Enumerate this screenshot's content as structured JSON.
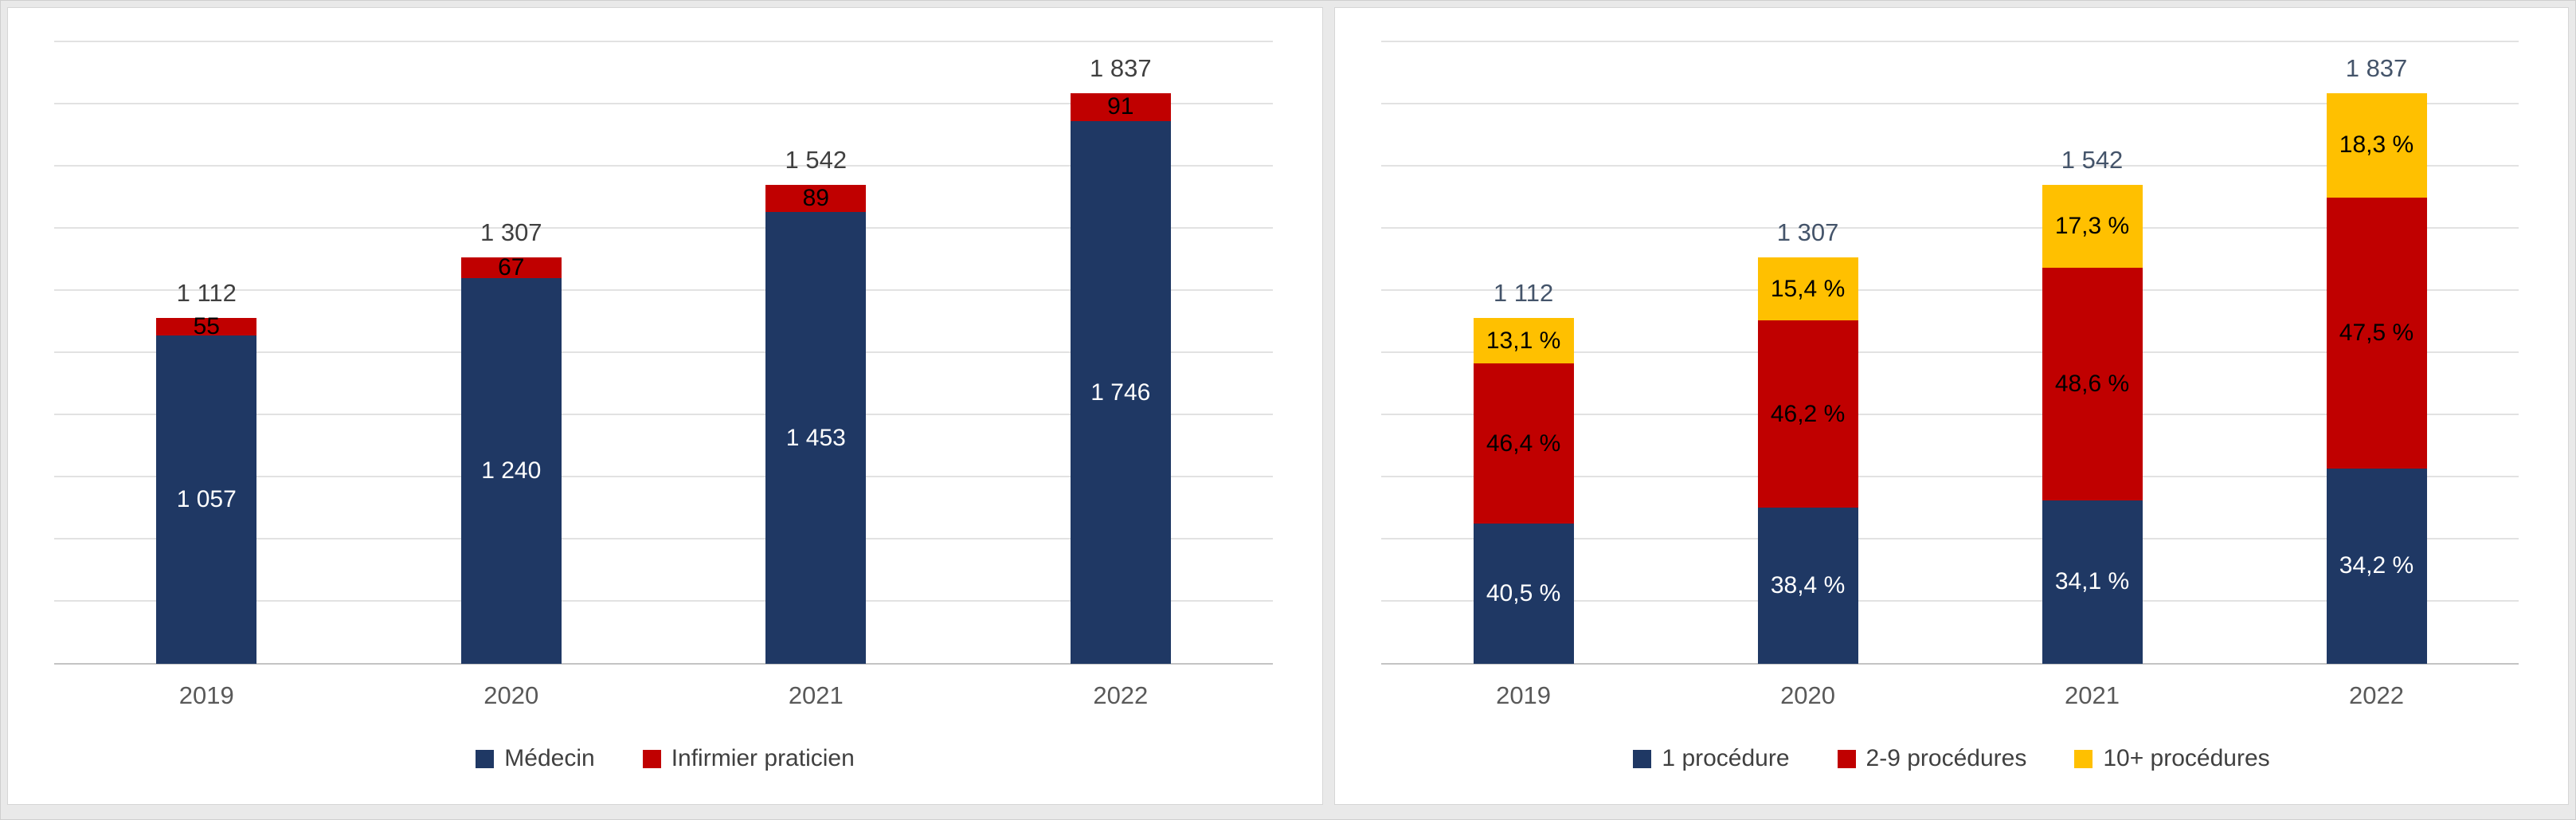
{
  "page": {
    "background_color": "#e9e9e9",
    "panel_color": "#ffffff"
  },
  "chart_data": [
    {
      "type": "bar",
      "stacked": true,
      "panel": "left",
      "title": "",
      "xlabel": "",
      "ylabel": "",
      "categories": [
        "2019",
        "2020",
        "2021",
        "2022"
      ],
      "totals": [
        1112,
        1307,
        1542,
        1837
      ],
      "total_labels": [
        "1 112",
        "1 307",
        "1 542",
        "1 837"
      ],
      "total_color": "#404040",
      "ylim": [
        0,
        2000
      ],
      "grid_step": 200,
      "grid": true,
      "legend_position": "bottom",
      "value_mode": "absolute",
      "series": [
        {
          "name": "Médecin",
          "color": "#1F3864",
          "label_color": "#FFFFFF",
          "values": [
            1057,
            1240,
            1453,
            1746
          ],
          "labels": [
            "1 057",
            "1 240",
            "1 453",
            "1 746"
          ]
        },
        {
          "name": "Infirmier praticien",
          "color": "#C00000",
          "label_color": "#000000",
          "values": [
            55,
            67,
            89,
            91
          ],
          "labels": [
            "55",
            "67",
            "89",
            "91"
          ]
        }
      ]
    },
    {
      "type": "bar",
      "stacked": true,
      "panel": "right",
      "title": "",
      "xlabel": "",
      "ylabel": "",
      "categories": [
        "2019",
        "2020",
        "2021",
        "2022"
      ],
      "totals": [
        1112,
        1307,
        1542,
        1837
      ],
      "total_labels": [
        "1 112",
        "1 307",
        "1 542",
        "1 837"
      ],
      "total_color": "#44546A",
      "ylim": [
        0,
        2000
      ],
      "grid_step": 200,
      "grid": true,
      "legend_position": "bottom",
      "value_mode": "percent_of_total",
      "series": [
        {
          "name": "1 procédure",
          "color": "#1F3864",
          "label_color": "#FFFFFF",
          "values": [
            40.5,
            38.4,
            34.1,
            34.2
          ],
          "labels": [
            "40,5 %",
            "38,4 %",
            "34,1 %",
            "34,2 %"
          ]
        },
        {
          "name": "2-9 procédures",
          "color": "#C00000",
          "label_color": "#000000",
          "values": [
            46.4,
            46.2,
            48.6,
            47.5
          ],
          "labels": [
            "46,4 %",
            "46,2 %",
            "48,6 %",
            "47,5 %"
          ]
        },
        {
          "name": "10+ procédures",
          "color": "#FFC000",
          "label_color": "#000000",
          "values": [
            13.1,
            15.4,
            17.3,
            18.3
          ],
          "labels": [
            "13,1 %",
            "15,4 %",
            "17,3 %",
            "18,3 %"
          ]
        }
      ]
    }
  ]
}
